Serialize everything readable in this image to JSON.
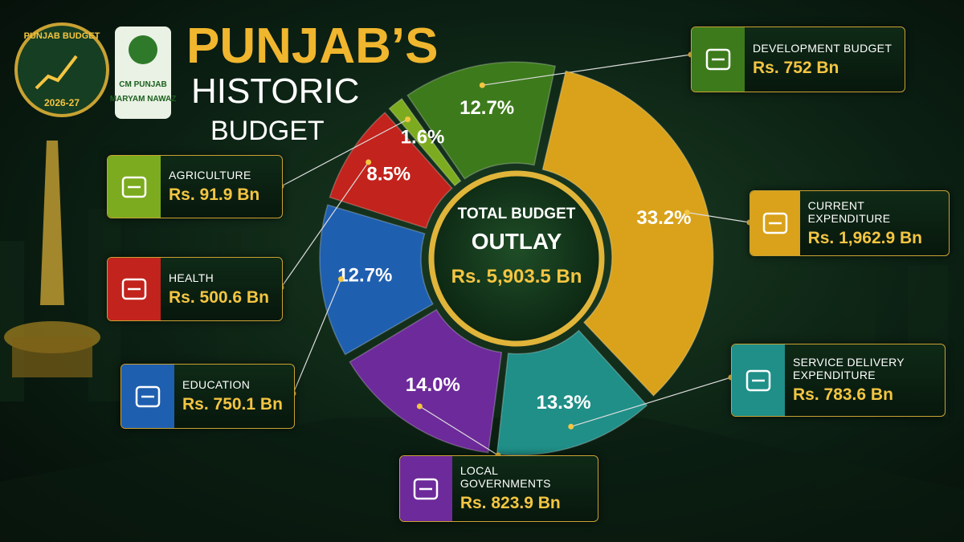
{
  "header": {
    "title_line1": "PUNJAB’S",
    "title_line2": "HISTORIC",
    "title_line3": "BUDGET",
    "logo_text": "PUNJAB BUDGET",
    "logo_year": "2026-27",
    "badge_line1": "CM PUNJAB",
    "badge_line2": "MARYAM NAWAZ"
  },
  "chart_data": {
    "type": "pie",
    "categories": [
      "DEVELOPMENT BUDGET",
      "CURRENT EXPENDITURE",
      "SERVICE DELIVERY EXPENDITURE",
      "LOCAL GOVERNMENTS",
      "EDUCATION",
      "HEALTH",
      "AGRICULTURE"
    ],
    "values": [
      12.7,
      33.2,
      13.3,
      14.0,
      12.7,
      8.5,
      1.6
    ],
    "value_labels": [
      "12.7%",
      "33.2%",
      "13.3%",
      "14.0%",
      "12.7%",
      "8.5%",
      "1.6%"
    ],
    "amounts": [
      "Rs. 752 Bn",
      "Rs. 1,962.9 Bn",
      "Rs. 783.6 Bn",
      "Rs. 823.9 Bn",
      "Rs. 750.1 Bn",
      "Rs. 500.6 Bn",
      "Rs. 91.9 Bn"
    ],
    "colors": [
      "#3d7a1c",
      "#d9a21a",
      "#1f8f88",
      "#6d2a9a",
      "#1f5fb0",
      "#c2231c",
      "#7cab1f"
    ],
    "center_label_1": "TOTAL BUDGET",
    "center_label_2": "OUTLAY",
    "center_value": "Rs. 5,903.5 Bn"
  }
}
